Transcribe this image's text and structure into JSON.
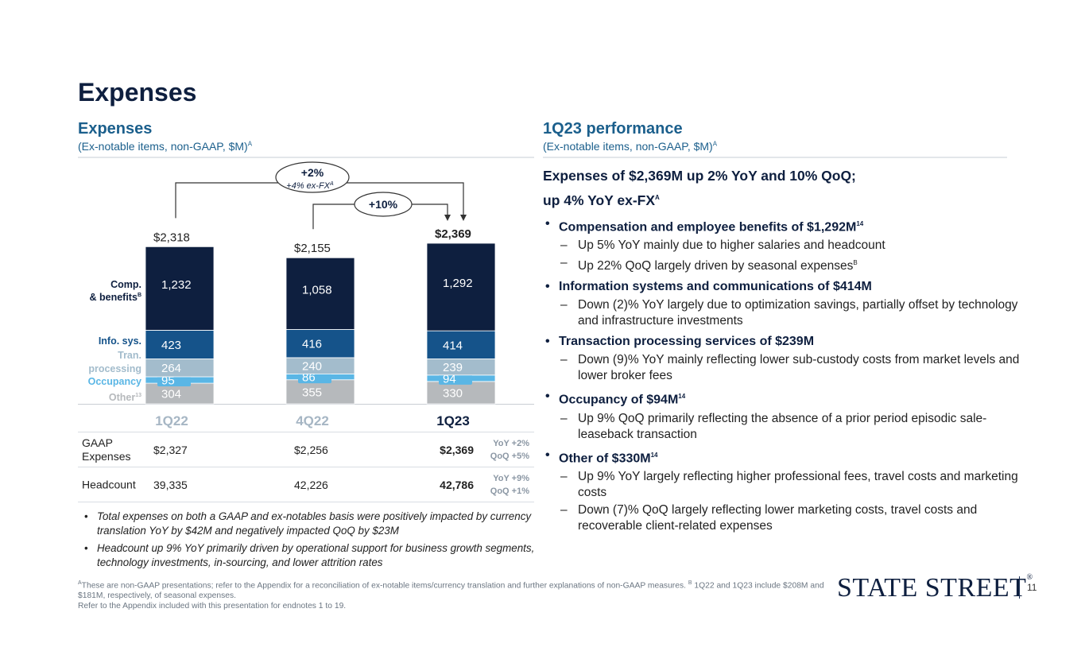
{
  "title": "Expenses",
  "left_section": {
    "title": "Expenses",
    "subtitle": "(Ex-notable items, non-GAAP, $M)",
    "subtitle_sup": "A"
  },
  "right_section": {
    "title": "1Q23 performance",
    "subtitle": "(Ex-notable items, non-GAAP, $M)",
    "subtitle_sup": "A"
  },
  "chart_data": {
    "type": "bar",
    "stacked": true,
    "categories": [
      "1Q22",
      "4Q22",
      "1Q23"
    ],
    "totals": [
      "$2,318",
      "$2,155",
      "$2,369"
    ],
    "series": [
      {
        "name": "Other",
        "sup": "13",
        "color": "#b6b9bc",
        "text_color": "#ffffff",
        "values": [
          304,
          355,
          330
        ]
      },
      {
        "name": "Occupancy",
        "color": "#5ab6e5",
        "text_color": "#ffffff",
        "values": [
          95,
          86,
          94
        ]
      },
      {
        "name": "Tran. processing",
        "color": "#a3bccc",
        "text_color": "#ffffff",
        "values": [
          264,
          240,
          239
        ]
      },
      {
        "name": "Info. sys.",
        "color": "#15538a",
        "text_color": "#ffffff",
        "values": [
          423,
          416,
          414
        ]
      },
      {
        "name": "Comp. & benefits",
        "sup": "B",
        "color": "#0e1f3f",
        "text_color": "#ffffff",
        "values": [
          1232,
          1058,
          1292
        ]
      }
    ],
    "legend_labels": {
      "comp_line1": "Comp.",
      "comp_line2": "& benefits",
      "comp_sup": "B",
      "info": "Info. sys.",
      "tran_line1": "Tran.",
      "tran_line2": "processing",
      "occupancy": "Occupancy",
      "other": "Other",
      "other_sup": "13"
    },
    "annotations": {
      "yoy_main": "+2%",
      "yoy_sub": "+4% ex-FX",
      "yoy_sup": "A",
      "qoq": "+10%"
    },
    "colors": {
      "category_muted": "#a6b6c4",
      "category_current": "#0e1f3f",
      "connector": "#333333"
    },
    "ylim": [
      0,
      2369
    ]
  },
  "table": {
    "rows": [
      {
        "label_line1": "GAAP",
        "label_line2": "Expenses",
        "values": [
          "$2,327",
          "$2,256",
          "$2,369"
        ],
        "change_line1": "YoY +2%",
        "change_line2": "QoQ +5%"
      },
      {
        "label_line1": "Headcount",
        "label_line2": "",
        "values": [
          "39,335",
          "42,226",
          "42,786"
        ],
        "change_line1": "YoY +9%",
        "change_line2": "QoQ +1%"
      }
    ]
  },
  "notes": [
    "Total expenses on both a GAAP and ex-notables basis were positively impacted by currency translation YoY by $42M and negatively impacted QoQ by $23M",
    "Headcount up 9% YoY primarily driven by operational support for business growth segments, technology investments, in-sourcing, and lower attrition rates"
  ],
  "performance": {
    "headline_line1": "Expenses of $2,369M up 2% YoY and 10% QoQ;",
    "headline_line2": "up 4% YoY ex-FX",
    "headline_sup": "A",
    "items": [
      {
        "text": "Compensation and employee benefits of $1,292M",
        "sup": "14",
        "subs": [
          {
            "text": "Up 5% YoY mainly due to higher salaries and headcount",
            "sup": ""
          },
          {
            "text": "Up 22% QoQ largely driven by seasonal expenses",
            "sup": "B"
          }
        ]
      },
      {
        "text": "Information systems and communications of $414M",
        "sup": "",
        "subs": [
          {
            "text": "Down (2)% YoY largely due to optimization savings, partially offset by technology and infrastructure investments",
            "sup": ""
          }
        ]
      },
      {
        "text": "Transaction processing services of $239M",
        "sup": "",
        "subs": [
          {
            "text": "Down (9)% YoY mainly reflecting lower sub-custody costs from market levels and lower broker fees",
            "sup": ""
          }
        ]
      },
      {
        "text": "Occupancy of $94M",
        "sup": "14",
        "subs": [
          {
            "text": "Up 9% QoQ primarily reflecting the absence of a prior period episodic sale-leaseback transaction",
            "sup": ""
          }
        ]
      },
      {
        "text": "Other of $330M",
        "sup": "14",
        "subs": [
          {
            "text": "Up 9% YoY largely reflecting higher professional fees, travel costs and marketing costs",
            "sup": ""
          },
          {
            "text": "Down (7)% QoQ largely reflecting lower marketing costs, travel costs and recoverable client-related expenses",
            "sup": ""
          }
        ]
      }
    ]
  },
  "footnote": {
    "sup_a": "A",
    "text_a": "These are non-GAAP presentations; refer to the Appendix for a reconciliation of ex-notable items/currency translation and further explanations of non-GAAP measures.",
    "sup_b": "B",
    "text_b": "1Q22 and 1Q23 include $208M and $181M, respectively, of seasonal expenses.",
    "line2": "Refer to the Appendix included with this presentation for endnotes 1 to 19."
  },
  "logo": {
    "text": "STATE STREET",
    "reg": "®"
  },
  "page_number": "11"
}
